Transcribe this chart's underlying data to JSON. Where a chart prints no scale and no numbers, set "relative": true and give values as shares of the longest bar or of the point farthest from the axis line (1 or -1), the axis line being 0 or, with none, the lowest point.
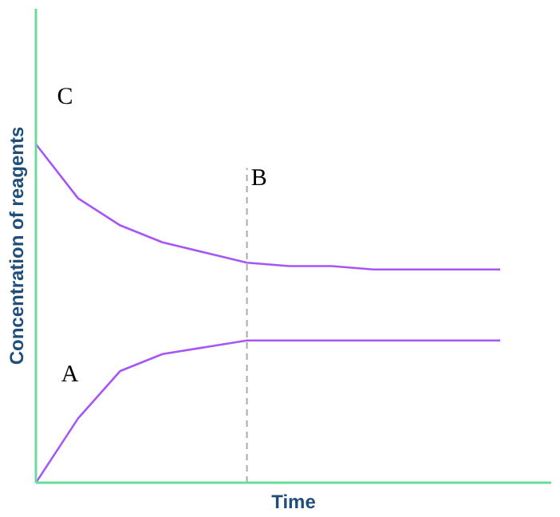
{
  "chart_data": {
    "type": "line",
    "relative": true,
    "xlabel": "Time",
    "ylabel": "Concentration of reagents",
    "categories": [
      null,
      null,
      null,
      null,
      null,
      null,
      null,
      null,
      null,
      null,
      null,
      null
    ],
    "series": [
      {
        "color": "#a855f7",
        "values": [
          1.0,
          0.84,
          0.76,
          0.71,
          0.68,
          0.65,
          0.64,
          0.64,
          0.63,
          0.63,
          0.63,
          0.63
        ]
      },
      {
        "color": "#a855f7",
        "values": [
          0.0,
          0.19,
          0.33,
          0.38,
          0.4,
          0.42,
          0.42,
          0.42,
          0.42,
          0.42,
          0.42,
          0.42
        ]
      }
    ],
    "annotations": [
      "C",
      "A",
      "B"
    ]
  }
}
